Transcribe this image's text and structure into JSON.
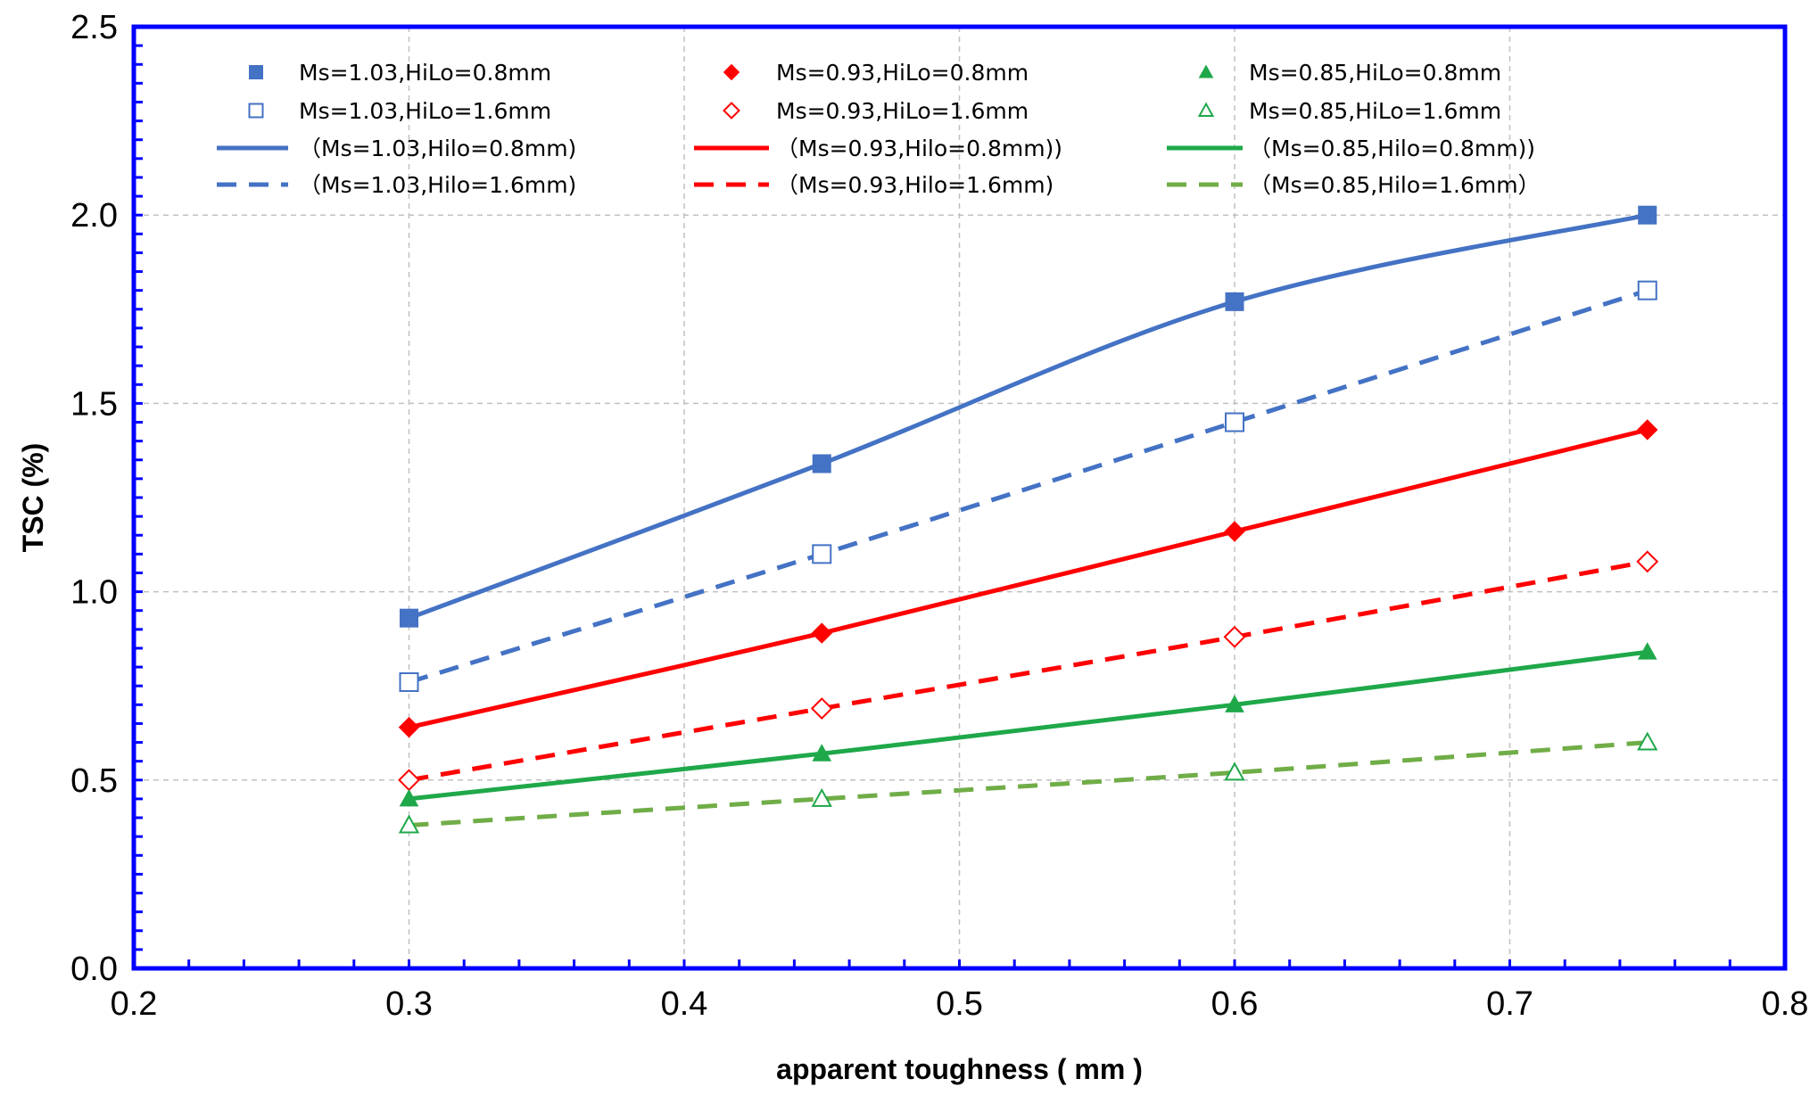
{
  "chart_data": {
    "type": "line",
    "title": "",
    "xlabel": "apparent toughness ( mm )",
    "ylabel": "TSC (%)",
    "xlim": [
      0.2,
      0.8
    ],
    "ylim": [
      0.0,
      2.5
    ],
    "xticks": [
      0.2,
      0.3,
      0.4,
      0.5,
      0.6,
      0.7,
      0.8
    ],
    "yticks": [
      0.0,
      0.5,
      1.0,
      1.5,
      2.0,
      2.5
    ],
    "xtick_labels": [
      "0.2",
      "0.3",
      "0.4",
      "0.5",
      "0.6",
      "0.7",
      "0.8"
    ],
    "ytick_labels": [
      "0.0",
      "0.5",
      "1.0",
      "1.5",
      "2.0",
      "2.5"
    ],
    "grid": true,
    "legend_position": "top",
    "x": [
      0.3,
      0.45,
      0.6,
      0.75
    ],
    "point_series": [
      {
        "name": "Ms=1.03,HiLo=0.8mm",
        "marker": "square",
        "filled": true,
        "color": "#4472C4",
        "values": [
          0.93,
          1.34,
          1.77,
          2.0
        ]
      },
      {
        "name": "Ms=1.03,HiLo=1.6mm",
        "marker": "square",
        "filled": false,
        "color": "#4472C4",
        "values": [
          0.76,
          1.1,
          1.45,
          1.8
        ]
      },
      {
        "name": "Ms=0.93,HiLo=0.8mm",
        "marker": "diamond",
        "filled": true,
        "color": "#FF0000",
        "values": [
          0.64,
          0.89,
          1.16,
          1.43
        ]
      },
      {
        "name": "Ms=0.93,HiLo=1.6mm",
        "marker": "diamond",
        "filled": false,
        "color": "#FF0000",
        "values": [
          0.5,
          0.69,
          0.88,
          1.08
        ]
      },
      {
        "name": "Ms=0.85,HiLo=0.8mm",
        "marker": "triangle",
        "filled": true,
        "color": "#1FA84A",
        "values": [
          0.45,
          0.57,
          0.7,
          0.84
        ]
      },
      {
        "name": "Ms=0.85,HiLo=1.6mm",
        "marker": "triangle",
        "filled": false,
        "color": "#1FA84A",
        "values": [
          0.38,
          0.45,
          0.52,
          0.6
        ]
      }
    ],
    "line_series": [
      {
        "name": "（Ms=1.03,Hilo=0.8mm)",
        "style": "solid",
        "color": "#4472C4",
        "values": [
          0.93,
          1.34,
          1.77,
          2.0
        ]
      },
      {
        "name": "（Ms=1.03,Hilo=1.6mm)",
        "style": "dashed",
        "color": "#4472C4",
        "values": [
          0.76,
          1.1,
          1.45,
          1.8
        ]
      },
      {
        "name": "（Ms=0.93,Hilo=0.8mm))",
        "style": "solid",
        "color": "#FF0000",
        "values": [
          0.64,
          0.89,
          1.16,
          1.43
        ]
      },
      {
        "name": "（Ms=0.93,Hilo=1.6mm)",
        "style": "dashed",
        "color": "#FF0000",
        "values": [
          0.5,
          0.69,
          0.88,
          1.08
        ]
      },
      {
        "name": "（Ms=0.85,Hilo=0.8mm))",
        "style": "solid",
        "color": "#1FA84A",
        "values": [
          0.45,
          0.57,
          0.7,
          0.84
        ]
      },
      {
        "name": "（Ms=0.85,Hilo=1.6mm）",
        "style": "dashed",
        "color": "#70AD47",
        "values": [
          0.38,
          0.45,
          0.52,
          0.6
        ]
      }
    ],
    "frame_color": "#0000FF"
  }
}
